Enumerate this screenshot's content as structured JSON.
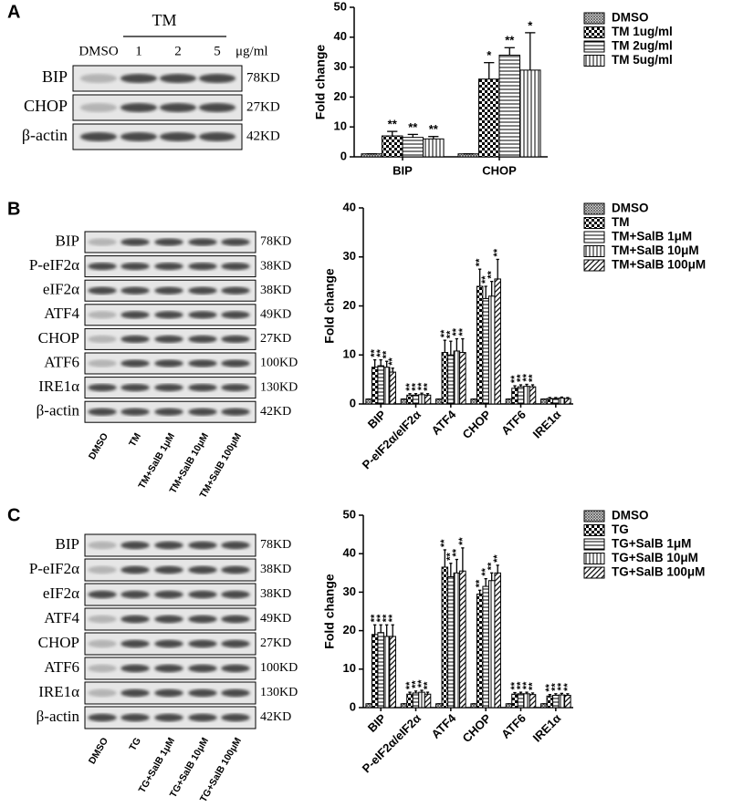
{
  "panel_labels": [
    "A",
    "B",
    "C"
  ],
  "blots": [
    {
      "group": "TM",
      "lanes": [
        "DMSO",
        "1",
        "2",
        "5"
      ],
      "unit": "μg/ml",
      "rows": [
        {
          "protein": "BIP",
          "size": "78KD"
        },
        {
          "protein": "CHOP",
          "size": "27KD"
        },
        {
          "protein": "β-actin",
          "size": "42KD"
        }
      ]
    },
    {
      "lanes": [
        "DMSO",
        "TM",
        "TM+SalB 1μM",
        "TM+SalB 10μM",
        "TM+SalB 100μM"
      ],
      "rows": [
        {
          "protein": "BIP",
          "size": "78KD"
        },
        {
          "protein": "P-eIF2α",
          "size": "38KD"
        },
        {
          "protein": "eIF2α",
          "size": "38KD"
        },
        {
          "protein": "ATF4",
          "size": "49KD"
        },
        {
          "protein": "CHOP",
          "size": "27KD"
        },
        {
          "protein": "ATF6",
          "size": "100KD"
        },
        {
          "protein": "IRE1α",
          "size": "130KD"
        },
        {
          "protein": "β-actin",
          "size": "42KD"
        }
      ]
    },
    {
      "lanes": [
        "DMSO",
        "TG",
        "TG+SalB 1μM",
        "TG+SalB 10μM",
        "TG+SalB 100μM"
      ],
      "rows": [
        {
          "protein": "BIP",
          "size": "78KD"
        },
        {
          "protein": "P-eIF2α",
          "size": "38KD"
        },
        {
          "protein": "eIF2α",
          "size": "38KD"
        },
        {
          "protein": "ATF4",
          "size": "49KD"
        },
        {
          "protein": "CHOP",
          "size": "27KD"
        },
        {
          "protein": "ATF6",
          "size": "100KD"
        },
        {
          "protein": "IRE1α",
          "size": "130KD"
        },
        {
          "protein": "β-actin",
          "size": "42KD"
        }
      ]
    }
  ],
  "chart_data": [
    {
      "type": "bar",
      "y_label": "Fold change",
      "categories": [
        "BIP",
        "CHOP"
      ],
      "ylim": [
        0,
        50
      ],
      "yticks": [
        0,
        10,
        20,
        30,
        40,
        50
      ],
      "series": [
        {
          "name": "DMSO",
          "color": "#000000",
          "pattern": "crosshatch",
          "values": [
            1,
            1
          ],
          "errors": [
            0,
            0
          ],
          "stars": [
            null,
            null
          ]
        },
        {
          "name": "TM 1ug/ml",
          "color": "#000000",
          "pattern": "checker",
          "values": [
            7,
            26
          ],
          "errors": [
            1.5,
            5.5
          ],
          "stars": [
            "**",
            "*"
          ]
        },
        {
          "name": "TM 2ug/ml",
          "color": "#000000",
          "pattern": "horizontal",
          "values": [
            6.5,
            34
          ],
          "errors": [
            1,
            2.5
          ],
          "stars": [
            "**",
            "**"
          ]
        },
        {
          "name": "TM 5ug/ml",
          "color": "#000000",
          "pattern": "vertical",
          "values": [
            6,
            29
          ],
          "errors": [
            0.8,
            12.5
          ],
          "stars": [
            "**",
            "*"
          ]
        }
      ]
    },
    {
      "type": "bar",
      "y_label": "Fold change",
      "categories": [
        "BIP",
        "P-eIF2α/eIF2α",
        "ATF4",
        "CHOP",
        "ATF6",
        "IRE1α"
      ],
      "ylim": [
        0,
        40
      ],
      "yticks": [
        0,
        10,
        20,
        30,
        40
      ],
      "series": [
        {
          "name": "DMSO",
          "color": "#000000",
          "pattern": "crosshatch",
          "values": [
            1,
            1,
            1,
            1,
            1,
            1
          ],
          "errors": [
            0,
            0,
            0,
            0,
            0,
            0
          ],
          "stars": [
            null,
            null,
            null,
            null,
            null,
            null
          ]
        },
        {
          "name": "TM",
          "color": "#000000",
          "pattern": "checker",
          "values": [
            7.5,
            1.8,
            10.5,
            24,
            3.2,
            1.1
          ],
          "errors": [
            1.5,
            0.3,
            2.5,
            3.5,
            0.5,
            0.2
          ],
          "stars": [
            "**",
            "**",
            "**",
            "**",
            "**",
            null
          ]
        },
        {
          "name": "TM+SalB 1μM",
          "color": "#000000",
          "pattern": "horizontal",
          "values": [
            7.8,
            1.8,
            10,
            21.5,
            3.5,
            1.1
          ],
          "errors": [
            1.2,
            0.3,
            2.8,
            2.5,
            0.4,
            0.2
          ],
          "stars": [
            "**",
            "**",
            "**",
            "**",
            "**",
            null
          ]
        },
        {
          "name": "TM+SalB 10μM",
          "color": "#000000",
          "pattern": "vertical",
          "values": [
            7.5,
            1.9,
            10.8,
            22,
            3.6,
            1.2
          ],
          "errors": [
            1.2,
            0.3,
            2.5,
            3,
            0.4,
            0.2
          ],
          "stars": [
            "**",
            "**",
            "**",
            "**",
            "**",
            null
          ]
        },
        {
          "name": "TM+SalB 100μM",
          "color": "#000000",
          "pattern": "diagonal",
          "values": [
            6.5,
            1.8,
            10.5,
            25.5,
            3.5,
            1.1
          ],
          "errors": [
            0.8,
            0.3,
            2.8,
            4,
            0.4,
            0.2
          ],
          "stars": [
            "**",
            "**",
            "**",
            "**",
            "**",
            null
          ]
        }
      ]
    },
    {
      "type": "bar",
      "y_label": "Fold change",
      "categories": [
        "BIP",
        "P-eIF2α/eIF2α",
        "ATF4",
        "CHOP",
        "ATF6",
        "IRE1α"
      ],
      "ylim": [
        0,
        50
      ],
      "yticks": [
        0,
        10,
        20,
        30,
        40,
        50
      ],
      "series": [
        {
          "name": "DMSO",
          "color": "#000000",
          "pattern": "crosshatch",
          "values": [
            1,
            1,
            1,
            1,
            1,
            1
          ],
          "errors": [
            0,
            0,
            0,
            0,
            0,
            0
          ],
          "stars": [
            null,
            null,
            null,
            null,
            null,
            null
          ]
        },
        {
          "name": "TG",
          "color": "#000000",
          "pattern": "checker",
          "values": [
            19,
            3.5,
            36.5,
            29.5,
            3.5,
            3
          ],
          "errors": [
            2.5,
            0.5,
            4.5,
            1,
            0.4,
            0.4
          ],
          "stars": [
            "**",
            "**",
            "**",
            "**",
            "**",
            "**"
          ]
        },
        {
          "name": "TG+SalB 1μM",
          "color": "#000000",
          "pattern": "horizontal",
          "values": [
            19.5,
            3.8,
            34,
            31.5,
            3.6,
            3.2
          ],
          "errors": [
            2,
            0.5,
            3.5,
            2,
            0.4,
            0.4
          ],
          "stars": [
            "**",
            "**",
            "**",
            "**",
            "**",
            "**"
          ]
        },
        {
          "name": "TG+SalB 10μM",
          "color": "#000000",
          "pattern": "vertical",
          "values": [
            18.5,
            4,
            35,
            33,
            3.6,
            3.3
          ],
          "errors": [
            3,
            0.5,
            3.5,
            2,
            0.4,
            0.4
          ],
          "stars": [
            "**",
            "**",
            "**",
            "**",
            "**",
            "**"
          ]
        },
        {
          "name": "TG+SalB 100μM",
          "color": "#000000",
          "pattern": "diagonal",
          "values": [
            18.5,
            3.5,
            35.5,
            35,
            3.4,
            3.2
          ],
          "errors": [
            3,
            0.5,
            6,
            2,
            0.4,
            0.4
          ],
          "stars": [
            "**",
            "**",
            "**",
            "**",
            "**",
            "**"
          ]
        }
      ]
    }
  ]
}
